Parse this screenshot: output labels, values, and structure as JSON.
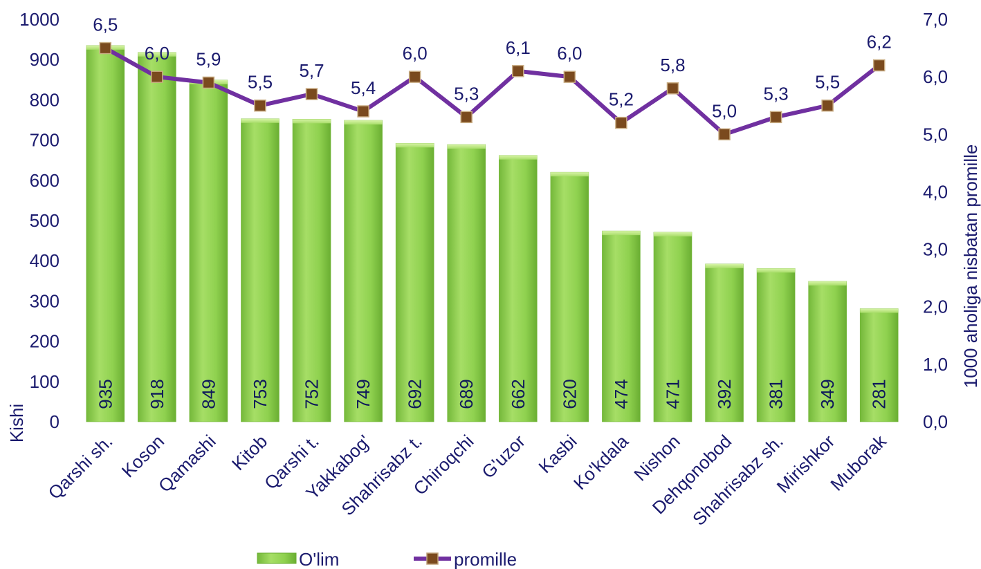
{
  "chart_data": {
    "type": "bar",
    "categories": [
      "Qarshi sh.",
      "Koson",
      "Qamashi",
      "Kitob",
      "Qarshi t.",
      "Yakkabog'",
      "Shahrisabz t.",
      "Chiroqchi",
      "G'uzor",
      "Kasbi",
      "Ko'kdala",
      "Nishon",
      "Dehqonobod",
      "Shahrisabz sh.",
      "Mirishkor",
      "Muborak"
    ],
    "series": [
      {
        "name": "O'lim",
        "type": "bar",
        "axis": "left",
        "values": [
          935,
          918,
          849,
          753,
          752,
          749,
          692,
          689,
          662,
          620,
          474,
          471,
          392,
          381,
          349,
          281
        ],
        "labels": [
          "935",
          "918",
          "849",
          "753",
          "752",
          "749",
          "692",
          "689",
          "662",
          "620",
          "474",
          "471",
          "392",
          "381",
          "349",
          "281"
        ],
        "color": "#8fd14f"
      },
      {
        "name": "promille",
        "type": "line",
        "axis": "right",
        "values": [
          6.5,
          6.0,
          5.9,
          5.5,
          5.7,
          5.4,
          6.0,
          5.3,
          6.1,
          6.0,
          5.2,
          5.8,
          5.0,
          5.3,
          5.5,
          6.2
        ],
        "labels": [
          "6,5",
          "6,0",
          "5,9",
          "5,5",
          "5,7",
          "5,4",
          "6,0",
          "5,3",
          "6,1",
          "6,0",
          "5,2",
          "5,8",
          "5,0",
          "5,3",
          "5,5",
          "6,2"
        ],
        "color": "#7030a0",
        "marker_color": "#7a4a1e"
      }
    ],
    "ylabel": "Kishi",
    "y2label": "1000 aholiga nisbatan promille",
    "ylim": [
      0,
      1000
    ],
    "y2lim": [
      0,
      7
    ],
    "yticks": [
      "0",
      "100",
      "200",
      "300",
      "400",
      "500",
      "600",
      "700",
      "800",
      "900",
      "1000"
    ],
    "y2ticks": [
      "0,0",
      "1,0",
      "2,0",
      "3,0",
      "4,0",
      "5,0",
      "6,0",
      "7,0"
    ],
    "grid": false,
    "legend_position": "bottom"
  }
}
